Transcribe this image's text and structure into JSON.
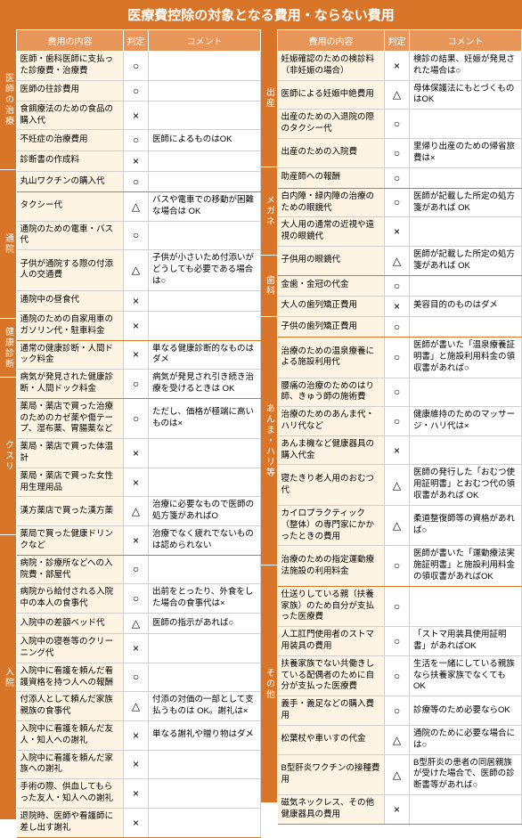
{
  "title": "医療費控除の対象となる費用・ならない費用",
  "headers": {
    "content": "費用の内容",
    "judge": "判定",
    "comment": "コメント"
  },
  "colors": {
    "primary": "#d97528",
    "header_bg": "#e8955a",
    "content_bg": "#fdf4e3",
    "border": "#d0d0d0"
  },
  "left": [
    {
      "cat": "医師の治療",
      "rows": [
        {
          "content": "医師・歯科医師に支払った診療費・治療費",
          "judge": "○",
          "comment": ""
        },
        {
          "content": "医師の往診費用",
          "judge": "○",
          "comment": ""
        },
        {
          "content": "食餌療法のための食品の購入代",
          "judge": "×",
          "comment": ""
        },
        {
          "content": "不妊症の治療費用",
          "judge": "○",
          "comment": "医師によるものはOK"
        },
        {
          "content": "診断書の作成料",
          "judge": "×",
          "comment": ""
        },
        {
          "content": "丸山ワクチンの購入代",
          "judge": "○",
          "comment": ""
        }
      ]
    },
    {
      "cat": "通院",
      "rows": [
        {
          "content": "タクシー代",
          "judge": "△",
          "comment": "バスや電車での移動が困難な場合は OK"
        },
        {
          "content": "通院のための電車・バス代",
          "judge": "○",
          "comment": ""
        },
        {
          "content": "子供が通院する際の付添人の交通費",
          "judge": "△",
          "comment": "子供が小さいため付添いがどうしても必要である場合は○"
        },
        {
          "content": "通院中の昼食代",
          "judge": "×",
          "comment": ""
        },
        {
          "content": "通院のための自家用車のガソリン代・駐車料金",
          "judge": "×",
          "comment": ""
        }
      ]
    },
    {
      "cat": "健康診断",
      "rows": [
        {
          "content": "通常の健康診断・人間ドック料金",
          "judge": "×",
          "comment": "単なる健康診断的なものはダメ"
        },
        {
          "content": "病気が発見された健康診断・人間ドック料金",
          "judge": "○",
          "comment": "病気が発見され引き続き治療を受けるときは OK"
        }
      ]
    },
    {
      "cat": "クスリ",
      "rows": [
        {
          "content": "薬局・薬店で買った治療のためのカゼ薬や傷テープ、湿布薬、胃腸薬など",
          "judge": "○",
          "comment": "ただし、価格が極端に高いものは×"
        },
        {
          "content": "薬局・薬店で買った体温計",
          "judge": "×",
          "comment": ""
        },
        {
          "content": "薬局・薬店で買った女性用生理用品",
          "judge": "×",
          "comment": ""
        },
        {
          "content": "漢方薬店で買った漢方薬",
          "judge": "△",
          "comment": "治療に必要なもので医師の処方箋があればO"
        },
        {
          "content": "薬局で買った健康ドリンクなど",
          "judge": "×",
          "comment": "治療でなく疲れでないものは認められない"
        }
      ]
    },
    {
      "cat": "入院",
      "rows": [
        {
          "content": "病院・診療所などへの入院費・部屋代",
          "judge": "○",
          "comment": ""
        },
        {
          "content": "病院から給付される入院中の本人の食事代",
          "judge": "○",
          "comment": "出前をとったり、外食をした場合の食事代は×"
        },
        {
          "content": "入院中の差額ベッド代",
          "judge": "△",
          "comment": "医師の指示があれば○"
        },
        {
          "content": "入院中の寝巻等のクリーニング代",
          "judge": "×",
          "comment": ""
        },
        {
          "content": "入院中に看護を頼んだ看護資格を持つ人への報酬",
          "judge": "○",
          "comment": ""
        },
        {
          "content": "付添人として頼んだ家族親族の食事代",
          "judge": "△",
          "comment": "付添の対価の一部として支払うものは OK。謝礼は×"
        },
        {
          "content": "入院中に看護を頼んだ友人・知人への謝礼",
          "judge": "×",
          "comment": "単なる謝礼や贈り物はダメ"
        },
        {
          "content": "入院中に看護を頼んだ家族への謝礼",
          "judge": "×",
          "comment": ""
        },
        {
          "content": "手術の際、供血してもらった友人・知人への謝礼",
          "judge": "×",
          "comment": ""
        },
        {
          "content": "退院時、医師や看護師に差し出す謝礼",
          "judge": "×",
          "comment": ""
        }
      ]
    }
  ],
  "right": [
    {
      "cat": "出産",
      "rows": [
        {
          "content": "妊娠確認のための検診料（非妊娠の場合）",
          "judge": "×",
          "comment": "検診の結果、妊娠が発見された場合は○"
        },
        {
          "content": "医師による妊娠中絶費用",
          "judge": "△",
          "comment": "母体保護法にもとづくものはOK"
        },
        {
          "content": "出産のための入退院の際のタクシー代",
          "judge": "○",
          "comment": ""
        },
        {
          "content": "出産のための入院費",
          "judge": "○",
          "comment": "里帰り出産のための帰省旅費は×"
        },
        {
          "content": "助産師への報酬",
          "judge": "○",
          "comment": ""
        }
      ]
    },
    {
      "cat": "メガネ",
      "rows": [
        {
          "content": "白内障・緑内障の治療のための眼鏡代",
          "judge": "○",
          "comment": "医師が記載した所定の処方箋があれば OK"
        },
        {
          "content": "大人用の通常の近視や遠視の眼鏡代",
          "judge": "×",
          "comment": ""
        },
        {
          "content": "子供用の眼鏡代",
          "judge": "△",
          "comment": "医師が記載した所定の処方箋があれば OK"
        }
      ]
    },
    {
      "cat": "歯科",
      "rows": [
        {
          "content": "金歯・金冠の代金",
          "judge": "○",
          "comment": ""
        },
        {
          "content": "大人の歯列矯正費用",
          "judge": "×",
          "comment": "美容目的のものはダメ"
        },
        {
          "content": "子供の歯列矯正費用",
          "judge": "○",
          "comment": ""
        }
      ]
    },
    {
      "cat": "あんま・ハリ等",
      "rows": [
        {
          "content": "治療のための温泉療養による施設利用代",
          "judge": "○",
          "comment": "医師が書いた「温泉療養証明書」と施設利用料金の領収書があれば○"
        },
        {
          "content": "腰痛の治療のためのはり師、きゅう師の施術費",
          "judge": "○",
          "comment": ""
        },
        {
          "content": "治療のためのあんま代・ハリ代など",
          "judge": "○",
          "comment": "健康維持のためのマッサージ・ハリ代は×"
        },
        {
          "content": "あんま機など健康器具の購入代金",
          "judge": "×",
          "comment": ""
        },
        {
          "content": "寝たきり老人用のおむつ代",
          "judge": "△",
          "comment": "医師の発行した「おむつ使用証明書」とおむつ代の領収書があれば OK"
        },
        {
          "content": "カイロプラクティック（整体）の専門家にかかったときの費用",
          "judge": "△",
          "comment": "柔道整復師等の資格があれば○"
        },
        {
          "content": "治療のための指定運動療法施設の利用料金",
          "judge": "○",
          "comment": "医師が書いた「運動療法実施証明書」と施設利用料金の領収書があればOK"
        }
      ]
    },
    {
      "cat": "その他",
      "rows": [
        {
          "content": "仕送りしている親（扶養家族）のため自分が支払った医療費",
          "judge": "○",
          "comment": ""
        },
        {
          "content": "人工肛門使用者のストマ用装具の費用",
          "judge": "○",
          "comment": "「ストマ用装具使用証明書」があればOK"
        },
        {
          "content": "扶養家族でない共働きしている配偶者のために自分が支払った医療費",
          "judge": "○",
          "comment": "生活を一緒にしている親族なら扶養家族でなくてもOK"
        },
        {
          "content": "義手・義足などの購入費用",
          "judge": "○",
          "comment": "診療等のため必要ならOK"
        },
        {
          "content": "松葉杖や車いすの代金",
          "judge": "△",
          "comment": "通院のために必要な場合には○"
        },
        {
          "content": "B型肝炎ワクチンの接種費用",
          "judge": "△",
          "comment": "B型肝炎の患者の同居親族が受けた場合で、医師の診断書等があれば○"
        },
        {
          "content": "磁気ネックレス、その他健康器具の費用",
          "judge": "×",
          "comment": ""
        }
      ]
    }
  ]
}
